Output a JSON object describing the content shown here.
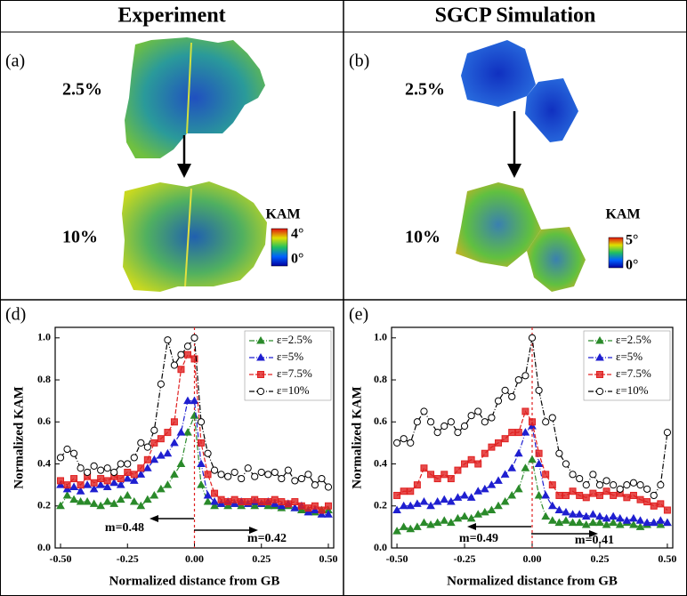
{
  "headers": [
    "Experiment",
    "SGCP Simulation"
  ],
  "maps": [
    {
      "label": "(a)",
      "strains": [
        "2.5%",
        "10%"
      ],
      "colorbar": {
        "title": "KAM",
        "max": "4°",
        "min": "0°"
      }
    },
    {
      "label": "(b)",
      "strains": [
        "2.5%",
        "10%"
      ],
      "colorbar": {
        "title": "KAM",
        "max": "5°",
        "min": "0°"
      }
    }
  ],
  "chart_data": [
    {
      "type": "line",
      "panel_label": "(d)",
      "xlabel": "Normalized distance from GB",
      "ylabel": "Normalized KAM",
      "x": [
        -0.5,
        -0.475,
        -0.45,
        -0.425,
        -0.4,
        -0.375,
        -0.35,
        -0.325,
        -0.3,
        -0.275,
        -0.25,
        -0.225,
        -0.2,
        -0.175,
        -0.15,
        -0.125,
        -0.1,
        -0.075,
        -0.05,
        -0.025,
        0,
        0.025,
        0.05,
        0.075,
        0.1,
        0.125,
        0.15,
        0.175,
        0.2,
        0.225,
        0.25,
        0.275,
        0.3,
        0.325,
        0.35,
        0.375,
        0.4,
        0.425,
        0.45,
        0.475,
        0.5
      ],
      "xlim": [
        -0.52,
        0.52
      ],
      "ylim": [
        0,
        1.05
      ],
      "xticks": [
        {
          "value": -0.5,
          "label": "-0.50"
        },
        {
          "value": -0.25,
          "label": "-0.25"
        },
        {
          "value": 0,
          "label": "0.00"
        },
        {
          "value": 0.25,
          "label": "0.25"
        },
        {
          "value": 0.5,
          "label": "0.50"
        }
      ],
      "yticks": [
        {
          "value": 0,
          "label": "0.0"
        },
        0.2,
        0.4,
        0.6,
        0.8,
        {
          "value": 1,
          "label": "1.0"
        }
      ],
      "reference_line": 0,
      "legend": "upper right",
      "annotations": [
        {
          "text": "m=0.48"
        },
        {
          "text": "m=0.42"
        }
      ],
      "series": [
        {
          "name": "ε=2.5%",
          "color": "#2a8a2a",
          "marker": "triangle",
          "values": [
            0.2,
            0.25,
            0.23,
            0.22,
            0.22,
            0.21,
            0.2,
            0.22,
            0.21,
            0.23,
            0.25,
            0.22,
            0.2,
            0.23,
            0.25,
            0.28,
            0.3,
            0.35,
            0.4,
            0.55,
            0.63,
            0.3,
            0.22,
            0.2,
            0.21,
            0.2,
            0.21,
            0.2,
            0.21,
            0.2,
            0.21,
            0.2,
            0.2,
            0.19,
            0.2,
            0.19,
            0.18,
            0.18,
            0.17,
            0.18,
            0.18
          ]
        },
        {
          "name": "ε=5%",
          "color": "#1f1fd0",
          "marker": "triangle",
          "values": [
            0.3,
            0.28,
            0.29,
            0.27,
            0.3,
            0.28,
            0.3,
            0.29,
            0.31,
            0.3,
            0.33,
            0.32,
            0.35,
            0.38,
            0.42,
            0.44,
            0.45,
            0.5,
            0.55,
            0.7,
            0.7,
            0.4,
            0.25,
            0.22,
            0.21,
            0.22,
            0.21,
            0.22,
            0.21,
            0.22,
            0.21,
            0.22,
            0.21,
            0.2,
            0.21,
            0.19,
            0.2,
            0.17,
            0.18,
            0.16,
            0.16
          ]
        },
        {
          "name": "ε=7.5%",
          "color": "#e02020",
          "marker": "square",
          "values": [
            0.32,
            0.3,
            0.33,
            0.3,
            0.34,
            0.31,
            0.33,
            0.32,
            0.34,
            0.33,
            0.36,
            0.35,
            0.38,
            0.42,
            0.5,
            0.52,
            0.55,
            0.6,
            0.85,
            0.92,
            0.9,
            0.5,
            0.35,
            0.26,
            0.23,
            0.22,
            0.23,
            0.22,
            0.22,
            0.23,
            0.22,
            0.22,
            0.23,
            0.22,
            0.21,
            0.22,
            0.2,
            0.19,
            0.2,
            0.18,
            0.2
          ]
        },
        {
          "name": "ε=10%",
          "color": "#000000",
          "marker": "circle",
          "values": [
            0.43,
            0.47,
            0.45,
            0.38,
            0.36,
            0.39,
            0.37,
            0.38,
            0.36,
            0.4,
            0.4,
            0.43,
            0.5,
            0.48,
            0.56,
            0.78,
            0.99,
            0.87,
            0.92,
            0.96,
            1.0,
            0.6,
            0.45,
            0.37,
            0.35,
            0.34,
            0.36,
            0.33,
            0.38,
            0.34,
            0.36,
            0.35,
            0.36,
            0.33,
            0.37,
            0.32,
            0.33,
            0.35,
            0.3,
            0.33,
            0.29
          ]
        }
      ]
    },
    {
      "type": "line",
      "panel_label": "(e)",
      "xlabel": "Normalized distance from GB",
      "ylabel": "Normalized KAM",
      "x": [
        -0.5,
        -0.475,
        -0.45,
        -0.425,
        -0.4,
        -0.375,
        -0.35,
        -0.325,
        -0.3,
        -0.275,
        -0.25,
        -0.225,
        -0.2,
        -0.175,
        -0.15,
        -0.125,
        -0.1,
        -0.075,
        -0.05,
        -0.025,
        0,
        0.025,
        0.05,
        0.075,
        0.1,
        0.125,
        0.15,
        0.175,
        0.2,
        0.225,
        0.25,
        0.275,
        0.3,
        0.325,
        0.35,
        0.375,
        0.4,
        0.425,
        0.45,
        0.475,
        0.5
      ],
      "xlim": [
        -0.52,
        0.52
      ],
      "ylim": [
        0,
        1.05
      ],
      "xticks": [
        {
          "value": -0.5,
          "label": "-0.50"
        },
        {
          "value": -0.25,
          "label": "-0.25"
        },
        {
          "value": 0,
          "label": "0.00"
        },
        {
          "value": 0.25,
          "label": "0.25"
        },
        {
          "value": 0.5,
          "label": "0.50"
        }
      ],
      "yticks": [
        {
          "value": 0,
          "label": "0.0"
        },
        0.2,
        0.4,
        0.6,
        0.8,
        {
          "value": 1,
          "label": "1.0"
        }
      ],
      "reference_line": 0,
      "legend": "upper right",
      "annotations": [
        {
          "text": "m=0.49"
        },
        {
          "text": "m=0.41"
        }
      ],
      "series": [
        {
          "name": "ε=2.5%",
          "color": "#2a8a2a",
          "marker": "triangle",
          "values": [
            0.08,
            0.1,
            0.09,
            0.1,
            0.12,
            0.11,
            0.12,
            0.13,
            0.12,
            0.14,
            0.15,
            0.14,
            0.16,
            0.17,
            0.18,
            0.2,
            0.22,
            0.25,
            0.28,
            0.38,
            0.42,
            0.25,
            0.15,
            0.13,
            0.12,
            0.13,
            0.12,
            0.12,
            0.11,
            0.12,
            0.12,
            0.11,
            0.12,
            0.11,
            0.12,
            0.11,
            0.1,
            0.11,
            0.12,
            0.11,
            0.12
          ]
        },
        {
          "name": "ε=5%",
          "color": "#1f1fd0",
          "marker": "triangle",
          "values": [
            0.18,
            0.2,
            0.2,
            0.21,
            0.22,
            0.2,
            0.22,
            0.23,
            0.22,
            0.24,
            0.25,
            0.24,
            0.27,
            0.28,
            0.3,
            0.32,
            0.35,
            0.38,
            0.45,
            0.55,
            0.58,
            0.4,
            0.25,
            0.2,
            0.18,
            0.17,
            0.16,
            0.16,
            0.15,
            0.16,
            0.15,
            0.14,
            0.15,
            0.14,
            0.13,
            0.14,
            0.13,
            0.12,
            0.12,
            0.13,
            0.12
          ]
        },
        {
          "name": "ε=7.5%",
          "color": "#e02020",
          "marker": "square",
          "values": [
            0.25,
            0.27,
            0.27,
            0.3,
            0.38,
            0.35,
            0.33,
            0.35,
            0.33,
            0.37,
            0.4,
            0.42,
            0.4,
            0.45,
            0.48,
            0.5,
            0.52,
            0.55,
            0.55,
            0.65,
            0.6,
            0.45,
            0.35,
            0.3,
            0.25,
            0.25,
            0.27,
            0.25,
            0.24,
            0.26,
            0.25,
            0.27,
            0.25,
            0.26,
            0.24,
            0.25,
            0.23,
            0.22,
            0.2,
            0.21,
            0.18
          ]
        },
        {
          "name": "ε=10%",
          "color": "#000000",
          "marker": "circle",
          "values": [
            0.5,
            0.52,
            0.5,
            0.6,
            0.65,
            0.6,
            0.55,
            0.58,
            0.6,
            0.55,
            0.58,
            0.63,
            0.65,
            0.6,
            0.62,
            0.7,
            0.75,
            0.72,
            0.8,
            0.82,
            1.0,
            0.75,
            0.6,
            0.62,
            0.45,
            0.4,
            0.35,
            0.33,
            0.3,
            0.35,
            0.3,
            0.32,
            0.3,
            0.28,
            0.3,
            0.31,
            0.3,
            0.28,
            0.25,
            0.3,
            0.55
          ]
        }
      ]
    }
  ]
}
